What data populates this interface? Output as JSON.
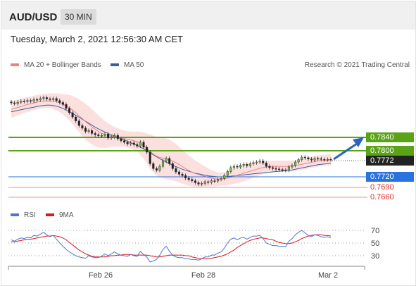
{
  "header": {
    "symbol": "AUD/USD",
    "timeframe": "30 MIN",
    "datetime": "Tuesday, March 2, 2021 12:56:30 AM CET"
  },
  "legend": {
    "ma20_label": "MA 20 + Bollinger Bands",
    "ma50_label": "MA 50",
    "copyright": "Research © 2021 Trading Central",
    "rsi_label": "RSI",
    "ma9_label": "9MA"
  },
  "colors": {
    "candle": "#7ac143",
    "ma20": "#f08080",
    "band_fill": "#fbdada",
    "ma50": "#36619c",
    "resistance": "#5aa317",
    "current": "#222222",
    "support_main": "#2a72e0",
    "support_thin": "#f09090",
    "support_text": "#e03030",
    "rsi": "#4f74d8",
    "rsi_ma": "#e01818",
    "arrow": "#2b64b6"
  },
  "chart_data": [
    {
      "type": "candlestick",
      "title": "AUD/USD 30 MIN",
      "x_ticks": [
        "Feb 26",
        "Feb 28",
        "Mar 2"
      ],
      "price_levels": [
        {
          "value": "0.7840",
          "kind": "resistance"
        },
        {
          "value": "0.7800",
          "kind": "resistance"
        },
        {
          "value": "0.7772",
          "kind": "current"
        },
        {
          "value": "0.7720",
          "kind": "support"
        },
        {
          "value": "0.7690",
          "kind": "support"
        },
        {
          "value": "0.7660",
          "kind": "support"
        }
      ],
      "ylim": [
        0.763,
        0.797
      ],
      "close": [
        0.7945,
        0.7943,
        0.7947,
        0.795,
        0.7949,
        0.7952,
        0.795,
        0.7955,
        0.7954,
        0.7958,
        0.7961,
        0.7957,
        0.7955,
        0.7958,
        0.7952,
        0.7946,
        0.794,
        0.7928,
        0.7915,
        0.7902,
        0.789,
        0.7876,
        0.7868,
        0.7858,
        0.7861,
        0.7852,
        0.7848,
        0.7845,
        0.7846,
        0.785,
        0.7838,
        0.7841,
        0.7846,
        0.7836,
        0.783,
        0.7825,
        0.782,
        0.7823,
        0.7818,
        0.7814,
        0.7825,
        0.781,
        0.7795,
        0.776,
        0.7745,
        0.774,
        0.7752,
        0.7768,
        0.7776,
        0.776,
        0.7745,
        0.7735,
        0.7728,
        0.7724,
        0.7716,
        0.7712,
        0.7708,
        0.7702,
        0.7698,
        0.77,
        0.7705,
        0.7703,
        0.7708,
        0.7707,
        0.7712,
        0.7715,
        0.7724,
        0.7736,
        0.7748,
        0.7752,
        0.775,
        0.7755,
        0.7758,
        0.7754,
        0.776,
        0.7763,
        0.7765,
        0.7768,
        0.7762,
        0.7752,
        0.7748,
        0.7745,
        0.7744,
        0.7742,
        0.7741,
        0.774,
        0.775,
        0.7755,
        0.7765,
        0.7772,
        0.778,
        0.7778,
        0.7774,
        0.7771,
        0.7776,
        0.7775,
        0.7773,
        0.7772,
        0.7773,
        0.7772
      ],
      "ma20": [
        0.7925,
        0.7928,
        0.7931,
        0.7934,
        0.7937,
        0.794,
        0.7942,
        0.7945,
        0.7947,
        0.7949,
        0.795,
        0.7951,
        0.7951,
        0.795,
        0.7948,
        0.7945,
        0.7941,
        0.7936,
        0.793,
        0.7923,
        0.7915,
        0.7906,
        0.7897,
        0.7888,
        0.788,
        0.7872,
        0.7865,
        0.7858,
        0.7853,
        0.7849,
        0.7846,
        0.7844,
        0.7842,
        0.784,
        0.7838,
        0.7836,
        0.7834,
        0.7832,
        0.783,
        0.7827,
        0.7822,
        0.7815,
        0.7806,
        0.7797,
        0.7789,
        0.7783,
        0.7779,
        0.7777,
        0.7775,
        0.7772,
        0.7768,
        0.7763,
        0.7757,
        0.7751,
        0.7745,
        0.7739,
        0.7734,
        0.773,
        0.7727,
        0.7724,
        0.7721,
        0.7718,
        0.7716,
        0.7714,
        0.7713,
        0.7713,
        0.7714,
        0.7716,
        0.7719,
        0.7722,
        0.7725,
        0.7728,
        0.7731,
        0.7734,
        0.7737,
        0.774,
        0.7743,
        0.7746,
        0.7748,
        0.775,
        0.7751,
        0.7752,
        0.7752,
        0.7752,
        0.7752,
        0.7752,
        0.7752,
        0.7753,
        0.7754,
        0.7756,
        0.7758,
        0.776,
        0.7762,
        0.7764,
        0.7766,
        0.7768,
        0.7769,
        0.777,
        0.7771,
        0.7772
      ],
      "bb_width": [
        0.0025,
        0.0025,
        0.0024,
        0.0024,
        0.0023,
        0.0023,
        0.0022,
        0.0022,
        0.0022,
        0.0022,
        0.0022,
        0.0022,
        0.0023,
        0.0024,
        0.0026,
        0.0028,
        0.0031,
        0.0035,
        0.0039,
        0.0043,
        0.0047,
        0.005,
        0.0053,
        0.0055,
        0.0055,
        0.0054,
        0.0052,
        0.0049,
        0.0045,
        0.0041,
        0.0037,
        0.0033,
        0.003,
        0.0028,
        0.0026,
        0.0025,
        0.0025,
        0.0026,
        0.0028,
        0.0031,
        0.0035,
        0.004,
        0.0046,
        0.0052,
        0.0056,
        0.0059,
        0.0061,
        0.0062,
        0.0062,
        0.0061,
        0.0059,
        0.0057,
        0.0055,
        0.0052,
        0.0049,
        0.0046,
        0.0043,
        0.004,
        0.0037,
        0.0034,
        0.0031,
        0.0028,
        0.0025,
        0.0023,
        0.0021,
        0.002,
        0.002,
        0.0021,
        0.0022,
        0.0023,
        0.0024,
        0.0025,
        0.0025,
        0.0025,
        0.0024,
        0.0023,
        0.0022,
        0.0021,
        0.002,
        0.0019,
        0.0018,
        0.0017,
        0.0017,
        0.0017,
        0.0017,
        0.0017,
        0.0017,
        0.0017,
        0.0017,
        0.0017,
        0.0017,
        0.0017,
        0.0017,
        0.0017,
        0.0017,
        0.0017,
        0.0017,
        0.0017,
        0.0017,
        0.0017
      ],
      "ma50": [
        0.7918,
        0.792,
        0.7922,
        0.7924,
        0.7926,
        0.7928,
        0.793,
        0.7932,
        0.7934,
        0.7936,
        0.7937,
        0.7938,
        0.7938,
        0.7937,
        0.7935,
        0.7932,
        0.7928,
        0.7923,
        0.7918,
        0.7913,
        0.7907,
        0.7901,
        0.7895,
        0.7889,
        0.7883,
        0.7877,
        0.7871,
        0.7866,
        0.7861,
        0.7856,
        0.7852,
        0.7848,
        0.7844,
        0.784,
        0.7836,
        0.7832,
        0.7828,
        0.7824,
        0.782,
        0.7815,
        0.781,
        0.7805,
        0.7799,
        0.7793,
        0.7787,
        0.7781,
        0.7775,
        0.777,
        0.7765,
        0.776,
        0.7755,
        0.7751,
        0.7747,
        0.7743,
        0.774,
        0.7737,
        0.7734,
        0.7731,
        0.7729,
        0.7727,
        0.7725,
        0.7723,
        0.7722,
        0.7721,
        0.772,
        0.772,
        0.772,
        0.7721,
        0.7722,
        0.7723,
        0.7724,
        0.7725,
        0.7726,
        0.7727,
        0.7728,
        0.7729,
        0.773,
        0.7731,
        0.7732,
        0.7733,
        0.7734,
        0.7735,
        0.7736,
        0.7737,
        0.7738,
        0.7739,
        0.774,
        0.7741,
        0.7743,
        0.7745,
        0.7747,
        0.7749,
        0.7751,
        0.7753,
        0.7755,
        0.7757,
        0.7758,
        0.7759,
        0.776,
        0.7761
      ]
    },
    {
      "type": "line",
      "title": "RSI",
      "y_ticks": [
        "70",
        "50",
        "30"
      ],
      "ylim": [
        15,
        85
      ],
      "series": [
        {
          "name": "RSI",
          "values": [
            55,
            53,
            56,
            58,
            57,
            59,
            58,
            62,
            61,
            64,
            67,
            63,
            60,
            62,
            56,
            50,
            45,
            40,
            36,
            33,
            30,
            28,
            27,
            26,
            30,
            28,
            27,
            27,
            29,
            33,
            30,
            33,
            36,
            33,
            31,
            30,
            29,
            32,
            30,
            29,
            37,
            32,
            28,
            20,
            22,
            24,
            31,
            40,
            45,
            37,
            31,
            28,
            27,
            27,
            25,
            25,
            24,
            24,
            23,
            25,
            28,
            28,
            31,
            31,
            34,
            36,
            42,
            50,
            56,
            58,
            55,
            58,
            59,
            56,
            59,
            61,
            61,
            62,
            57,
            50,
            48,
            46,
            46,
            45,
            45,
            44,
            53,
            57,
            63,
            67,
            70,
            66,
            62,
            60,
            63,
            62,
            60,
            59,
            60,
            58
          ]
        },
        {
          "name": "9MA",
          "values": [
            52,
            52,
            53,
            54,
            55,
            56,
            56,
            57,
            58,
            59,
            60,
            61,
            61,
            62,
            61,
            60,
            58,
            55,
            51,
            47,
            43,
            39,
            36,
            33,
            31,
            29,
            28,
            28,
            28,
            28,
            29,
            30,
            30,
            31,
            31,
            32,
            32,
            32,
            31,
            31,
            31,
            31,
            31,
            30,
            29,
            28,
            28,
            29,
            30,
            31,
            31,
            31,
            31,
            31,
            30,
            30,
            28,
            27,
            26,
            25,
            25,
            25,
            26,
            27,
            28,
            29,
            31,
            33,
            36,
            39,
            43,
            46,
            49,
            52,
            54,
            56,
            57,
            58,
            58,
            57,
            56,
            55,
            53,
            51,
            50,
            49,
            49,
            50,
            52,
            54,
            57,
            59,
            61,
            62,
            63,
            63,
            63,
            62,
            62,
            61
          ]
        }
      ]
    }
  ]
}
